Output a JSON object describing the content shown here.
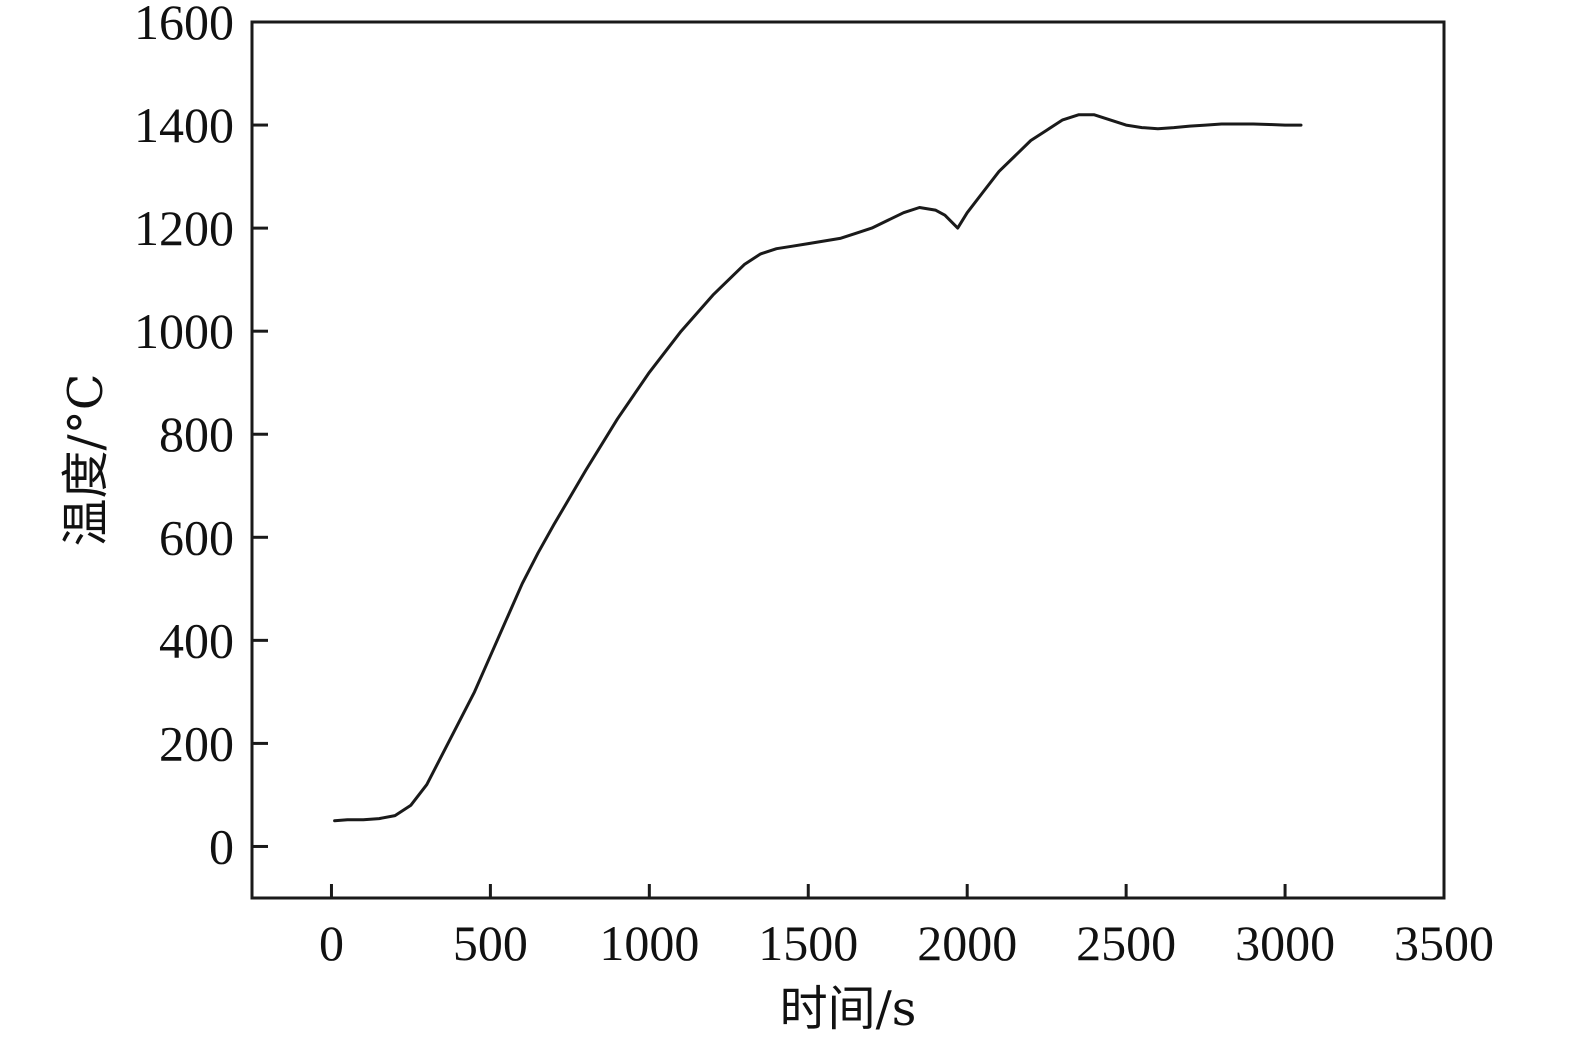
{
  "chart_data": {
    "type": "line",
    "title": "",
    "xlabel": "时间/s",
    "ylabel": "温度/°C",
    "xlim": [
      -250,
      3500
    ],
    "ylim": [
      -100,
      1600
    ],
    "xticks": [
      0,
      500,
      1000,
      1500,
      2000,
      2500,
      3000,
      3500
    ],
    "yticks": [
      0,
      200,
      400,
      600,
      800,
      1000,
      1200,
      1400,
      1600
    ],
    "xtick_labels": [
      "0",
      "500",
      "1000",
      "1500",
      "2000",
      "2500",
      "3000",
      "3500"
    ],
    "ytick_labels": [
      "0",
      "200",
      "400",
      "600",
      "800",
      "1000",
      "1200",
      "1400",
      "1600"
    ],
    "grid": false,
    "legend": "none",
    "line_color": "#1a1a1a",
    "series": [
      {
        "x": [
          10,
          50,
          100,
          150,
          200,
          250,
          300,
          350,
          400,
          450,
          500,
          550,
          600,
          650,
          700,
          800,
          900,
          1000,
          1100,
          1200,
          1300,
          1350,
          1400,
          1450,
          1500,
          1550,
          1600,
          1650,
          1700,
          1750,
          1800,
          1850,
          1900,
          1930,
          1970,
          2000,
          2050,
          2100,
          2150,
          2200,
          2250,
          2300,
          2350,
          2400,
          2450,
          2500,
          2550,
          2600,
          2650,
          2700,
          2750,
          2800,
          2850,
          2900,
          2950,
          3000,
          3050
        ],
        "y": [
          50,
          52,
          52,
          54,
          60,
          80,
          120,
          180,
          240,
          300,
          370,
          440,
          510,
          570,
          625,
          730,
          830,
          920,
          1000,
          1070,
          1130,
          1150,
          1160,
          1165,
          1170,
          1175,
          1180,
          1190,
          1200,
          1215,
          1230,
          1240,
          1235,
          1225,
          1200,
          1230,
          1270,
          1310,
          1340,
          1370,
          1390,
          1410,
          1420,
          1420,
          1410,
          1400,
          1395,
          1393,
          1395,
          1398,
          1400,
          1402,
          1402,
          1402,
          1401,
          1400,
          1400
        ]
      }
    ]
  }
}
